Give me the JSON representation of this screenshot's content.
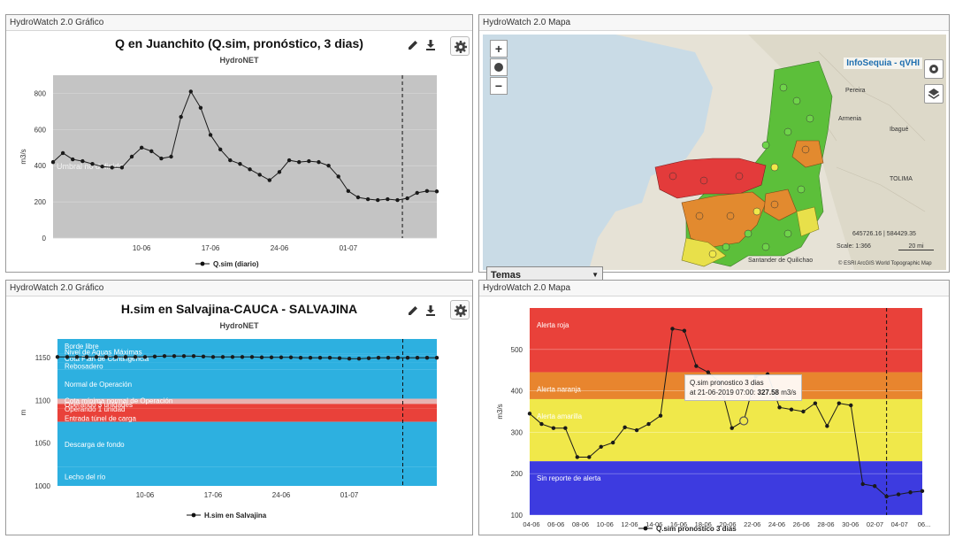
{
  "panels": {
    "top_left": {
      "header": "HydroWatch 2.0 Gráfico",
      "title": "Q en Juanchito (Q.sim, pronóstico, 3 dias)",
      "subtitle": "HydroNET",
      "band_label": "Umbral no definido",
      "legend": "Q.sim (diario)"
    },
    "top_right": {
      "header": "HydroWatch 2.0 Mapa",
      "infosequia": "InfoSequia - qVHI",
      "temas": "Temas",
      "zoom_in": "+",
      "zoom_out": "−",
      "places": [
        "Pereira",
        "Armenia",
        "Ibagué",
        "TOLIMA",
        "Santander de Quilichao"
      ],
      "scale_coords": "645726.16 | 584429.35",
      "scale_value": "20 mi",
      "scale_ratio": "Scale: 1:366",
      "attribution": "© ESRI ArcGIS World Topographic Map"
    },
    "bottom_left": {
      "header": "HydroWatch 2.0 Gráfico",
      "title": "H.sim en Salvajina-CAUCA - SALVAJINA",
      "subtitle": "HydroNET",
      "legend": "H.sim en Salvajina"
    },
    "bottom_right": {
      "header": "HydroWatch 2.0 Mapa",
      "legend": "Q.sim pronostico 3 dias",
      "tooltip_line1": "Q.sim pronostico 3 dias",
      "tooltip_date": "at 21-06-2019 07:00:",
      "tooltip_value": "327.58",
      "tooltip_unit": "m3/s"
    }
  },
  "colors": {
    "plot_gray": "#c4c4c4",
    "cyan": "#2db0e0",
    "red_band": "#e9413a",
    "orange_band": "#e8852e",
    "yellow_band": "#f0e84a",
    "blue_band": "#3d3be0",
    "line": "#1a1a1a"
  },
  "chart_data": [
    {
      "type": "line",
      "title": "Q en Juanchito (Q.sim, pronóstico, 3 dias)",
      "subtitle": "HydroNET",
      "ylabel": "m3/s",
      "xlabel": "",
      "ylim": [
        0,
        900
      ],
      "yticks": [
        0,
        200,
        400,
        600,
        800
      ],
      "x_tick_labels": [
        {
          "day": 9,
          "label": "10-06"
        },
        {
          "day": 16,
          "label": "17-06"
        },
        {
          "day": 23,
          "label": "24-06"
        },
        {
          "day": 30,
          "label": "01-07"
        }
      ],
      "x_range_days": [
        0,
        39
      ],
      "forecast_line_day": 35.5,
      "grid": true,
      "legend_position": "bottom",
      "series": [
        {
          "name": "Q.sim (diario)",
          "x_days": [
            0,
            1,
            2,
            3,
            4,
            5,
            6,
            7,
            8,
            9,
            10,
            11,
            12,
            13,
            14,
            15,
            16,
            17,
            18,
            19,
            20,
            21,
            22,
            23,
            24,
            25,
            26,
            27,
            28,
            29,
            30,
            31,
            32,
            33,
            34,
            35,
            36,
            37,
            38,
            39
          ],
          "values": [
            420,
            470,
            435,
            425,
            410,
            395,
            390,
            390,
            450,
            500,
            480,
            440,
            450,
            670,
            810,
            720,
            570,
            490,
            430,
            410,
            380,
            350,
            320,
            365,
            430,
            420,
            425,
            420,
            400,
            340,
            260,
            225,
            215,
            210,
            215,
            210,
            220,
            250,
            260,
            258
          ]
        }
      ]
    },
    {
      "type": "line",
      "title": "H.sim en Salvajina-CAUCA - SALVAJINA",
      "subtitle": "HydroNET",
      "ylabel": "m",
      "ylim": [
        1000,
        1172
      ],
      "yticks": [
        1000,
        1050,
        1100,
        1150
      ],
      "x_tick_labels": [
        {
          "day": 9,
          "label": "10-06"
        },
        {
          "day": 16,
          "label": "17-06"
        },
        {
          "day": 23,
          "label": "24-06"
        },
        {
          "day": 30,
          "label": "01-07"
        }
      ],
      "x_range_days": [
        0,
        39
      ],
      "forecast_line_day": 35.5,
      "bands": [
        {
          "label": "Borde libre",
          "from": 1155,
          "to": 1172,
          "color": "#2db0e0"
        },
        {
          "label": "Nivel de Aguas Máximas",
          "from": 1153,
          "to": 1155,
          "color": "#2db0e0"
        },
        {
          "label": "Cota Plan de Contingencia",
          "from": 1145,
          "to": 1153,
          "color": "#2db0e0"
        },
        {
          "label": "Rebosadero",
          "from": 1136,
          "to": 1145,
          "color": "#2db0e0"
        },
        {
          "label": "Normal de Operación",
          "from": 1102,
          "to": 1136,
          "color": "#2db0e0"
        },
        {
          "label": "Cota mínima normal de Operación",
          "from": 1096,
          "to": 1102,
          "color": "#e8b2b0"
        },
        {
          "label": "Operando 3 unidades",
          "from": 1091,
          "to": 1096,
          "color": "#e9413a"
        },
        {
          "label": "Operando 1 unidad",
          "from": 1086,
          "to": 1091,
          "color": "#e9413a"
        },
        {
          "label": "Entrada túnel de carga",
          "from": 1075,
          "to": 1086,
          "color": "#e9413a"
        },
        {
          "label": "Descarga de fondo",
          "from": 1022,
          "to": 1075,
          "color": "#2db0e0"
        },
        {
          "label": "Lecho del río",
          "from": 1000,
          "to": 1022,
          "color": "#2db0e0"
        }
      ],
      "series": [
        {
          "name": "H.sim en Salvajina",
          "x_days": [
            0,
            1,
            2,
            3,
            4,
            5,
            6,
            7,
            8,
            9,
            10,
            11,
            12,
            13,
            14,
            15,
            16,
            17,
            18,
            19,
            20,
            21,
            22,
            23,
            24,
            25,
            26,
            27,
            28,
            29,
            30,
            31,
            32,
            33,
            34,
            35,
            36,
            37,
            38,
            39
          ],
          "values": [
            1151,
            1151,
            1151,
            1151,
            1151,
            1151,
            1151,
            1151,
            1151,
            1151,
            1151.5,
            1152,
            1152,
            1152,
            1152,
            1151.5,
            1151,
            1151,
            1151,
            1151,
            1151,
            1150.5,
            1150.5,
            1150.5,
            1150.5,
            1150,
            1150,
            1150,
            1150,
            1149.5,
            1149,
            1149,
            1149.5,
            1150,
            1150,
            1150,
            1150,
            1150,
            1150,
            1150
          ]
        }
      ]
    },
    {
      "type": "line",
      "title": "",
      "ylabel": "m3/s",
      "ylim": [
        100,
        600
      ],
      "yticks": [
        100,
        200,
        300,
        400,
        500
      ],
      "x_tick_labels": [
        "04-06",
        "06-06",
        "08-06",
        "10-06",
        "12-06",
        "14-06",
        "16-06",
        "18-06",
        "20-06",
        "22-06",
        "24-06",
        "26-06",
        "28-06",
        "30-06",
        "02-07",
        "04-07",
        "06..."
      ],
      "x_range_days": [
        0,
        33
      ],
      "forecast_line_day": 30,
      "bands": [
        {
          "label": "Alerta roja",
          "from": 445,
          "to": 600,
          "color": "#e9413a"
        },
        {
          "label": "Alerta naranja",
          "from": 380,
          "to": 445,
          "color": "#e8852e"
        },
        {
          "label": "Alerta amarilla",
          "from": 230,
          "to": 380,
          "color": "#f0e84a"
        },
        {
          "label": "Sin reporte de alerta",
          "from": 100,
          "to": 230,
          "color": "#3d3be0"
        }
      ],
      "series": [
        {
          "name": "Q.sim pronostico 3 dias",
          "x_days": [
            0,
            1,
            2,
            3,
            4,
            5,
            6,
            7,
            8,
            9,
            10,
            11,
            12,
            13,
            14,
            15,
            16,
            17,
            18,
            19,
            20,
            21,
            22,
            23,
            24,
            25,
            26,
            27,
            28,
            29,
            30,
            31,
            32,
            33
          ],
          "values": [
            345,
            320,
            310,
            310,
            240,
            240,
            265,
            275,
            312,
            305,
            320,
            340,
            550,
            545,
            460,
            445,
            420,
            310,
            327.58,
            435,
            440,
            360,
            355,
            350,
            370,
            315,
            370,
            365,
            175,
            170,
            145,
            150,
            155,
            158
          ]
        }
      ],
      "highlight": {
        "day": 18,
        "value": 327.58
      }
    }
  ]
}
